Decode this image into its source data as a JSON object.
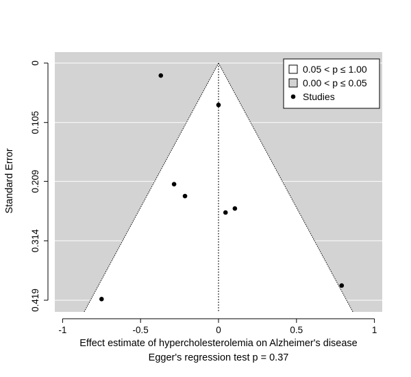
{
  "chart_data": {
    "type": "scatter",
    "subtype": "contour-enhanced funnel plot",
    "xlabel": "Effect estimate of hypercholesterolemia on Alzheimer's disease",
    "subtitle": "Egger's regression test p = 0.37",
    "ylabel": "Standard Error",
    "xlim": [
      -1.05,
      1.05
    ],
    "ylim": [
      0.419,
      0
    ],
    "y_reversed": true,
    "x_ticks": [
      -1,
      -0.5,
      0,
      0.5,
      1
    ],
    "x_tick_labels": [
      "-1",
      "-0.5",
      "0",
      "0.5",
      "1"
    ],
    "y_ticks": [
      0,
      0.105,
      0.209,
      0.314,
      0.419
    ],
    "y_tick_labels": [
      "0",
      "0.105",
      "0.209",
      "0.314",
      "0.419"
    ],
    "grid": "horizontal",
    "reference_line_x": 0,
    "legend_position": "top-right",
    "legend": [
      {
        "label": "0.05 < p ≤ 1.00",
        "kind": "region",
        "color": "#ffffff"
      },
      {
        "label": "0.00 < p ≤ 0.05",
        "kind": "region",
        "color": "#d3d3d3"
      },
      {
        "label": "Studies",
        "kind": "point",
        "color": "#000000"
      }
    ],
    "funnel_z": 1.96,
    "colors": {
      "significant_region": "#d3d3d3",
      "nonsignificant_region": "#ffffff",
      "points": "#000000"
    },
    "points": [
      {
        "x": -0.37,
        "y": 0.022
      },
      {
        "x": 0.0,
        "y": 0.074
      },
      {
        "x": -0.285,
        "y": 0.214
      },
      {
        "x": -0.215,
        "y": 0.235
      },
      {
        "x": 0.105,
        "y": 0.257
      },
      {
        "x": 0.045,
        "y": 0.264
      },
      {
        "x": 0.79,
        "y": 0.393
      },
      {
        "x": -0.75,
        "y": 0.417
      }
    ]
  }
}
